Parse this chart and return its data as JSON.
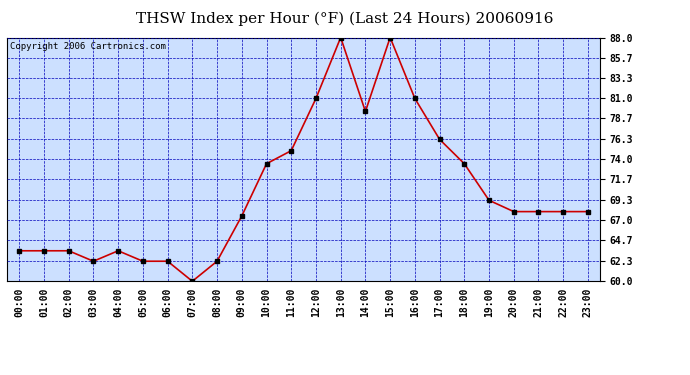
{
  "title": "THSW Index per Hour (°F) (Last 24 Hours) 20060916",
  "copyright": "Copyright 2006 Cartronics.com",
  "x_labels": [
    "00:00",
    "01:00",
    "02:00",
    "03:00",
    "04:00",
    "05:00",
    "06:00",
    "07:00",
    "08:00",
    "09:00",
    "10:00",
    "11:00",
    "12:00",
    "13:00",
    "14:00",
    "15:00",
    "16:00",
    "17:00",
    "18:00",
    "19:00",
    "20:00",
    "21:00",
    "22:00",
    "23:00"
  ],
  "y_values": [
    63.5,
    63.5,
    63.5,
    62.3,
    63.5,
    62.3,
    62.3,
    60.0,
    62.3,
    67.5,
    73.5,
    75.0,
    81.0,
    88.0,
    79.5,
    88.0,
    81.0,
    76.3,
    73.5,
    69.3,
    68.0,
    68.0,
    68.0,
    68.0
  ],
  "y_min": 60.0,
  "y_max": 88.0,
  "y_ticks": [
    60.0,
    62.3,
    64.7,
    67.0,
    69.3,
    71.7,
    74.0,
    76.3,
    78.7,
    81.0,
    83.3,
    85.7,
    88.0
  ],
  "line_color": "#cc0000",
  "marker_color": "#000000",
  "bg_color": "#cce0ff",
  "fig_bg_color": "#ffffff",
  "grid_color": "#0000bb",
  "title_color": "#000000",
  "border_color": "#000000",
  "title_fontsize": 11,
  "copyright_fontsize": 6.5,
  "tick_fontsize": 7,
  "ytick_labels": [
    "60.0",
    "62.3",
    "64.7",
    "67.0",
    "69.3",
    "71.7",
    "74.0",
    "76.3",
    "78.7",
    "81.0",
    "83.3",
    "85.7",
    "88.0"
  ]
}
